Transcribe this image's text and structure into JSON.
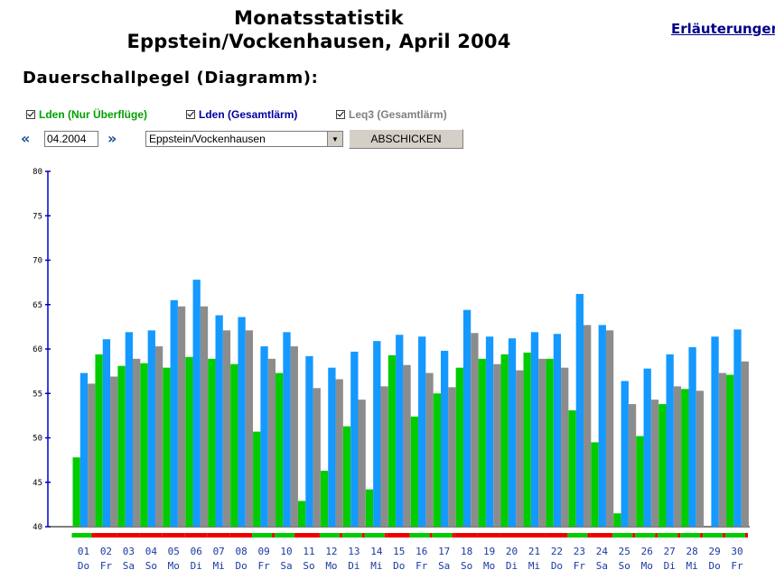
{
  "header": {
    "title_line1": "Monatsstatistik",
    "title_line2": "Eppstein/Vockenhausen, April 2004",
    "help_link": "Erläuterungen",
    "subtitle": "Dauerschallpegel (Diagramm):"
  },
  "legend": [
    {
      "label": "Lden (Nur Überflüge)",
      "color": "#00a000",
      "checked": true
    },
    {
      "label": "Lden (Gesamtlärm)",
      "color": "#0000a0",
      "checked": true
    },
    {
      "label": "Leq3 (Gesamtlärm)",
      "color": "#808080",
      "checked": true
    }
  ],
  "controls": {
    "prev_icon": "double-left-arrow",
    "next_icon": "double-right-arrow",
    "month_value": "04.2004",
    "location_value": "Eppstein/Vockenhausen",
    "submit_label": "ABSCHICKEN"
  },
  "colors": {
    "series_green": "#00cc00",
    "series_blue": "#1499ff",
    "series_gray": "#8c8c8c",
    "strip_green": "#00cc00",
    "strip_red": "#ee0000",
    "axis_blue": "#0000cc",
    "tick_label_blue": "#1a3aa0"
  },
  "chart_data": {
    "type": "bar",
    "ylim": [
      40,
      80
    ],
    "yticks": [
      40,
      45,
      50,
      55,
      60,
      65,
      70,
      75,
      80
    ],
    "days": [
      "01",
      "02",
      "03",
      "04",
      "05",
      "06",
      "07",
      "08",
      "09",
      "10",
      "11",
      "12",
      "13",
      "14",
      "15",
      "16",
      "17",
      "18",
      "19",
      "20",
      "21",
      "22",
      "23",
      "24",
      "25",
      "26",
      "27",
      "28",
      "29",
      "30"
    ],
    "weekdays": [
      "Do",
      "Fr",
      "Sa",
      "So",
      "Mo",
      "Di",
      "Mi",
      "Do",
      "Fr",
      "Sa",
      "So",
      "Mo",
      "Di",
      "Mi",
      "Do",
      "Fr",
      "Sa",
      "So",
      "Mo",
      "Di",
      "Mi",
      "Do",
      "Fr",
      "Sa",
      "So",
      "Mo",
      "Di",
      "Mi",
      "Do",
      "Fr"
    ],
    "series": [
      {
        "name": "Lden (Nur Überflüge)",
        "color": "#00cc00",
        "values": [
          47.8,
          59.4,
          58.1,
          58.4,
          57.9,
          59.1,
          58.9,
          58.3,
          50.7,
          57.3,
          42.9,
          46.3,
          51.3,
          44.2,
          59.3,
          52.4,
          55.0,
          57.9,
          58.9,
          59.4,
          59.6,
          58.9,
          53.1,
          49.5,
          41.5,
          50.2,
          53.8,
          55.5,
          null,
          57.1
        ]
      },
      {
        "name": "Lden (Gesamtlärm)",
        "color": "#1499ff",
        "values": [
          57.3,
          61.1,
          61.9,
          62.1,
          65.5,
          67.8,
          63.8,
          63.6,
          60.3,
          61.9,
          59.2,
          57.9,
          59.7,
          60.9,
          61.6,
          61.4,
          59.8,
          64.4,
          61.4,
          61.2,
          61.9,
          61.7,
          66.2,
          62.7,
          56.4,
          57.8,
          59.4,
          60.2,
          61.4,
          62.2
        ]
      },
      {
        "name": "Leq3 (Gesamtlärm)",
        "color": "#8c8c8c",
        "values": [
          56.1,
          56.9,
          58.9,
          60.3,
          64.8,
          64.8,
          62.1,
          62.1,
          58.9,
          60.3,
          55.6,
          56.6,
          54.3,
          55.8,
          58.2,
          57.3,
          55.7,
          61.8,
          58.3,
          57.6,
          58.9,
          57.9,
          62.7,
          62.1,
          53.8,
          54.3,
          55.8,
          55.3,
          57.3,
          58.6
        ]
      }
    ],
    "status_strip": [
      "gr",
      "r",
      "r",
      "r",
      "r",
      "r",
      "r",
      "r",
      "gr",
      "gr",
      "r",
      "gr",
      "gr",
      "gr",
      "r",
      "gr",
      "gr",
      "r",
      "r",
      "r",
      "r",
      "r",
      "gr",
      "r",
      "gr",
      "gr",
      "gr",
      "gr",
      "gr",
      "gr"
    ]
  }
}
